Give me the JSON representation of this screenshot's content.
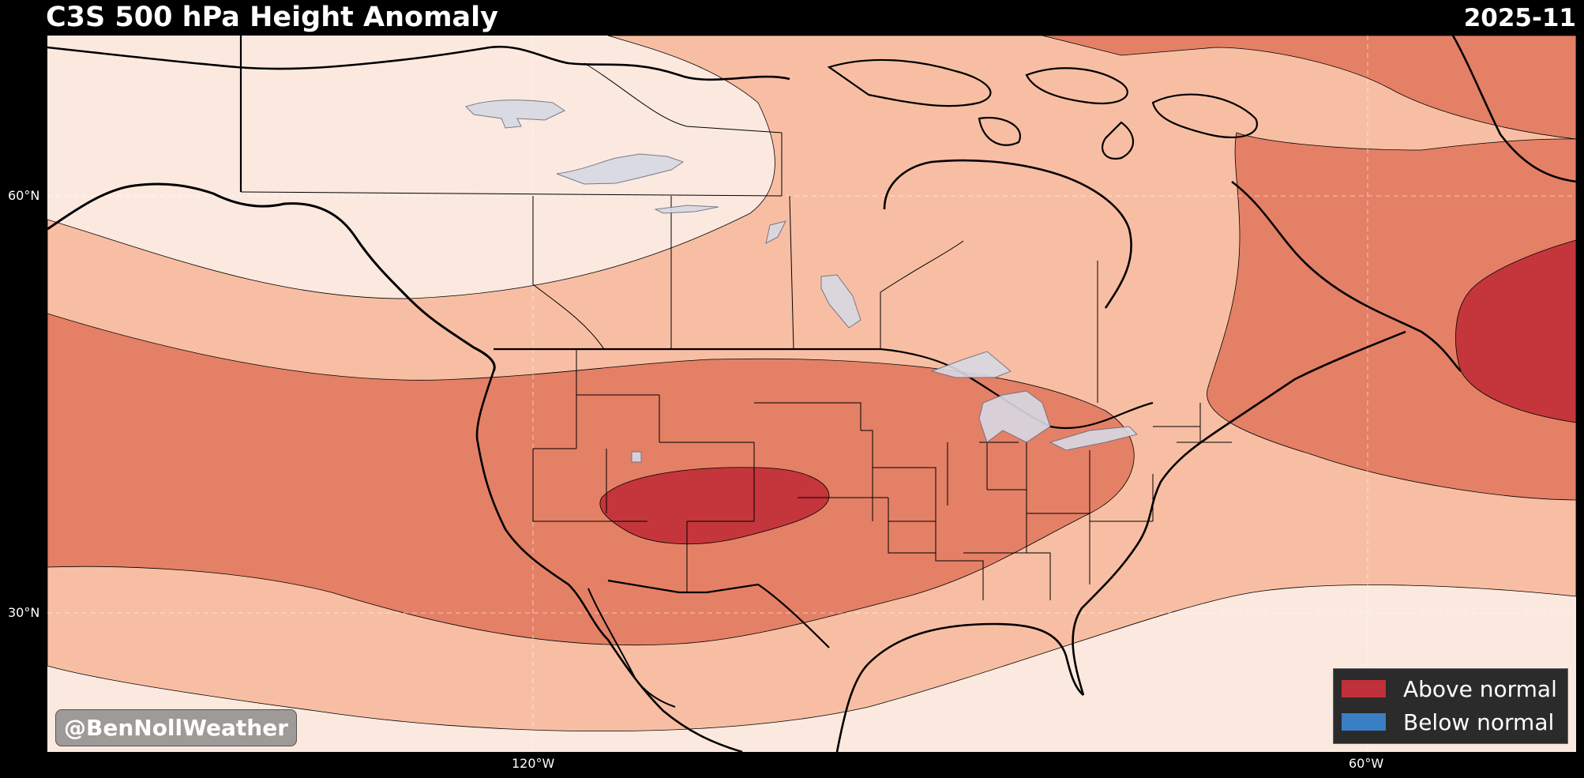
{
  "header": {
    "title": "C3S 500 hPa Height Anomaly",
    "date": "2025-11"
  },
  "axes": {
    "lat_ticks": [
      "60°N",
      "30°N"
    ],
    "lon_ticks": [
      "120°W",
      "60°W"
    ]
  },
  "watermark": "@BenNollWeather",
  "legend": {
    "items": [
      {
        "label": "Above normal",
        "color": "#c0303a"
      },
      {
        "label": "Below normal",
        "color": "#3a7fc4"
      }
    ]
  },
  "colors": {
    "level0": "#fbe9df",
    "level1": "#f8bea3",
    "level2": "#e48066",
    "level3": "#c4363b",
    "lakes": "#d7d9e3",
    "coast": "#000000",
    "gridlines": "#ffffff"
  }
}
